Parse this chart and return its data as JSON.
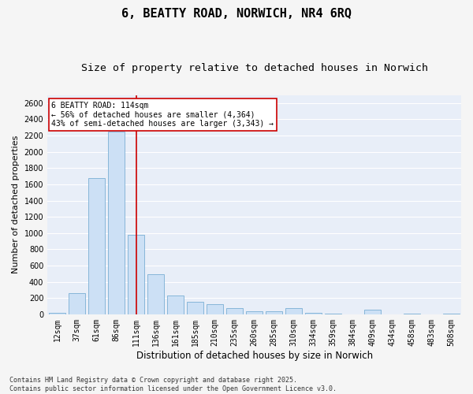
{
  "title": "6, BEATTY ROAD, NORWICH, NR4 6RQ",
  "subtitle": "Size of property relative to detached houses in Norwich",
  "xlabel": "Distribution of detached houses by size in Norwich",
  "ylabel": "Number of detached properties",
  "categories": [
    "12sqm",
    "37sqm",
    "61sqm",
    "86sqm",
    "111sqm",
    "136sqm",
    "161sqm",
    "185sqm",
    "210sqm",
    "235sqm",
    "260sqm",
    "285sqm",
    "310sqm",
    "334sqm",
    "359sqm",
    "384sqm",
    "409sqm",
    "434sqm",
    "458sqm",
    "483sqm",
    "508sqm"
  ],
  "values": [
    20,
    260,
    1680,
    2250,
    980,
    490,
    235,
    150,
    120,
    80,
    40,
    35,
    75,
    20,
    10,
    0,
    60,
    0,
    10,
    0,
    10
  ],
  "bar_color": "#cce0f5",
  "bar_edge_color": "#7aafd4",
  "vline_x_index": 4,
  "vline_color": "#cc0000",
  "annotation_text": "6 BEATTY ROAD: 114sqm\n← 56% of detached houses are smaller (4,364)\n43% of semi-detached houses are larger (3,343) →",
  "annotation_box_facecolor": "#ffffff",
  "annotation_box_edge": "#cc0000",
  "ylim": [
    0,
    2700
  ],
  "yticks": [
    0,
    200,
    400,
    600,
    800,
    1000,
    1200,
    1400,
    1600,
    1800,
    2000,
    2200,
    2400,
    2600
  ],
  "plot_bg_color": "#e8eef8",
  "grid_color": "#ffffff",
  "fig_bg_color": "#f5f5f5",
  "title_fontsize": 11,
  "subtitle_fontsize": 9.5,
  "xlabel_fontsize": 8.5,
  "ylabel_fontsize": 8,
  "tick_fontsize": 7,
  "annot_fontsize": 7,
  "footer_fontsize": 6,
  "footer": "Contains HM Land Registry data © Crown copyright and database right 2025.\nContains public sector information licensed under the Open Government Licence v3.0."
}
